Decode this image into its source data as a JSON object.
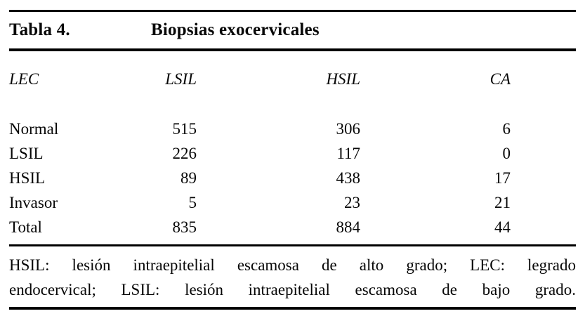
{
  "table": {
    "label": "Tabla 4.",
    "title": "Biopsias exocervicales",
    "columns": [
      "LEC",
      "LSIL",
      "HSIL",
      "CA"
    ],
    "rows": [
      {
        "label": "Normal",
        "values": [
          "515",
          "306",
          "6"
        ]
      },
      {
        "label": "LSIL",
        "values": [
          "226",
          "117",
          "0"
        ]
      },
      {
        "label": "HSIL",
        "values": [
          "89",
          "438",
          "17"
        ]
      },
      {
        "label": "Invasor",
        "values": [
          "5",
          "23",
          "21"
        ]
      },
      {
        "label": "Total",
        "values": [
          "835",
          "884",
          "44"
        ]
      }
    ],
    "footnote_lines": [
      "HSIL: lesión intraepitelial escamosa de alto grado; LEC: legrado",
      "endocervical; LSIL: lesión intraepitelial escamosa de bajo grado."
    ]
  },
  "colors": {
    "background": "#ffffff",
    "text": "#070707",
    "rule": "#000000"
  }
}
